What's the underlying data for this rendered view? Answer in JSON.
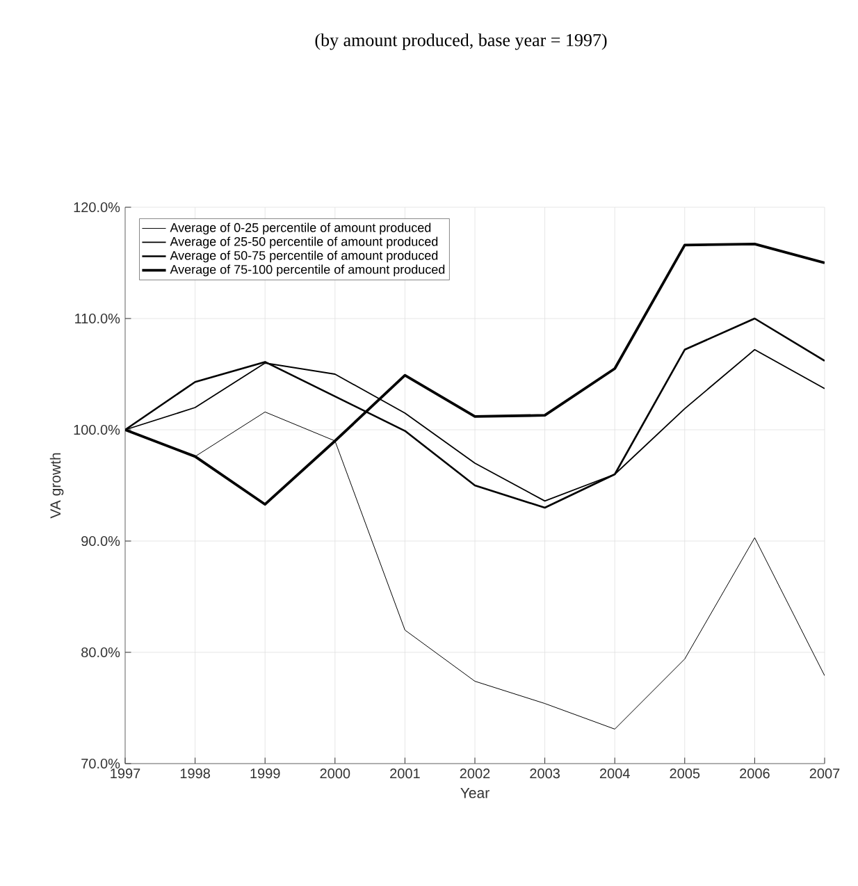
{
  "chart_data": {
    "type": "line",
    "title": "(by amount produced, base year = 1997)",
    "xlabel": "Year",
    "ylabel": "VA growth",
    "x": [
      1997,
      1998,
      1999,
      2000,
      2001,
      2002,
      2003,
      2004,
      2005,
      2006,
      2007
    ],
    "series": [
      {
        "name": "Average of 0-25 percentile of amount produced",
        "color": "#000000",
        "values": [
          100,
          97.6,
          101.6,
          99.0,
          82.0,
          77.4,
          75.4,
          73.1,
          79.4,
          90.3,
          77.9
        ]
      },
      {
        "name": "Average of 25-50 percentile of amount produced",
        "color": "#000000",
        "values": [
          100,
          102.0,
          106.0,
          105.0,
          101.5,
          97.0,
          93.6,
          96.0,
          101.9,
          107.2,
          103.7
        ]
      },
      {
        "name": "Average of 50-75 percentile of amount produced",
        "color": "#000000",
        "values": [
          100,
          104.3,
          106.1,
          103.0,
          99.9,
          95.0,
          93.0,
          96.0,
          107.2,
          110.0,
          106.2
        ]
      },
      {
        "name": "Average of 75-100 percentile of amount produced",
        "color": "#000000",
        "values": [
          100,
          97.6,
          93.3,
          99.0,
          104.9,
          101.2,
          101.3,
          105.5,
          116.6,
          116.7,
          115.0
        ]
      }
    ],
    "xlim": [
      1997,
      2007
    ],
    "xticks": [
      1997,
      1998,
      1999,
      2000,
      2001,
      2002,
      2003,
      2004,
      2005,
      2006,
      2007
    ],
    "ylim": [
      70,
      120
    ],
    "yticks": [
      {
        "value": 70,
        "label": "70.0%"
      },
      {
        "value": 80,
        "label": "80.0%"
      },
      {
        "value": 90,
        "label": "90.0%"
      },
      {
        "value": 100,
        "label": "100.0%"
      },
      {
        "value": 110,
        "label": "110.0%"
      },
      {
        "value": 120,
        "label": "120.0%"
      }
    ],
    "grid": true,
    "legend": "top left",
    "marker": "none",
    "line_style": "solid"
  }
}
